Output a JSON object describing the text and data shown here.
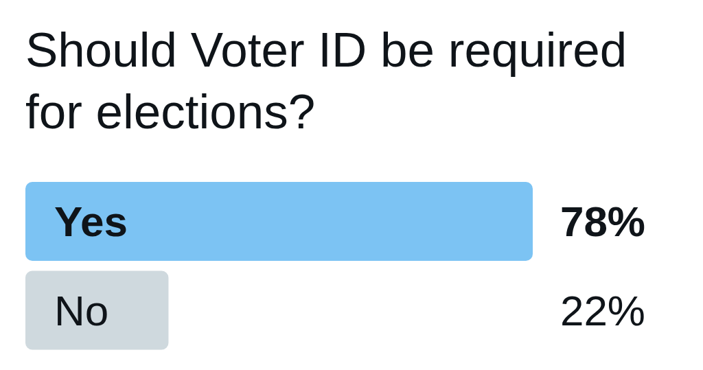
{
  "chart_data": {
    "type": "bar",
    "orientation": "horizontal",
    "title": "Should Voter ID be required for elections?",
    "categories": [
      "Yes",
      "No"
    ],
    "values": [
      78,
      22
    ],
    "colors": [
      "#7cc3f3",
      "#cfd9de"
    ],
    "value_labels": [
      "78%",
      "22%"
    ],
    "tick_labels": "y"
  }
}
